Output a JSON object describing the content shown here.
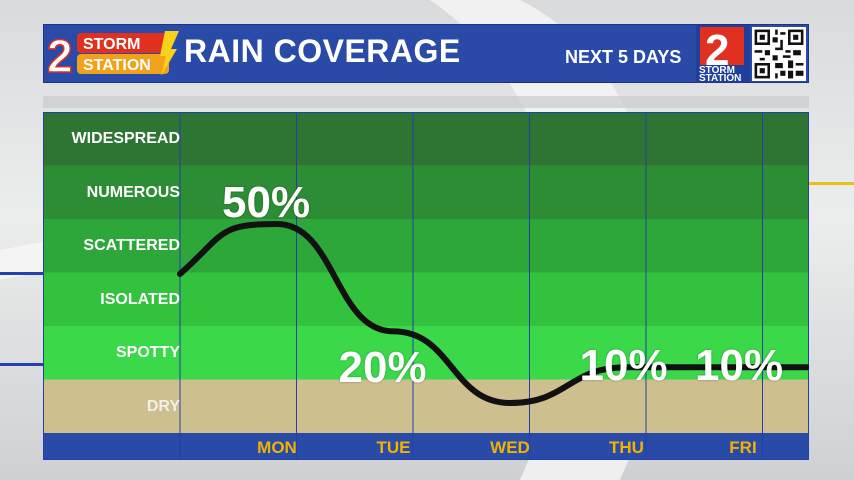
{
  "header": {
    "brand_top": "STORM",
    "brand_bottom": "STATION",
    "brand_number": "2",
    "title": "RAIN COVERAGE",
    "subtitle": "NEXT 5 DAYS",
    "badge_number": "2",
    "badge_text_top": "STORM",
    "badge_text_bottom": "STATION"
  },
  "colors": {
    "header_blue": "#2a4aa8",
    "day_label": "#f0b400",
    "dry_band": "#cdbf8e",
    "curve": "#111111"
  },
  "chart_data": {
    "type": "line",
    "title": "RAIN COVERAGE",
    "categories": [
      "MON",
      "TUE",
      "WED",
      "THU",
      "FRI"
    ],
    "coverage_levels": [
      "DRY",
      "SPOTTY",
      "ISOLATED",
      "SCATTERED",
      "NUMEROUS",
      "WIDESPREAD"
    ],
    "series": [
      {
        "values": [
          50,
          20,
          0,
          10,
          10
        ]
      }
    ],
    "value_labels": [
      "50%",
      "20%",
      "",
      "10%",
      "10%"
    ],
    "ylim": [
      0,
      100
    ],
    "grid": true
  }
}
